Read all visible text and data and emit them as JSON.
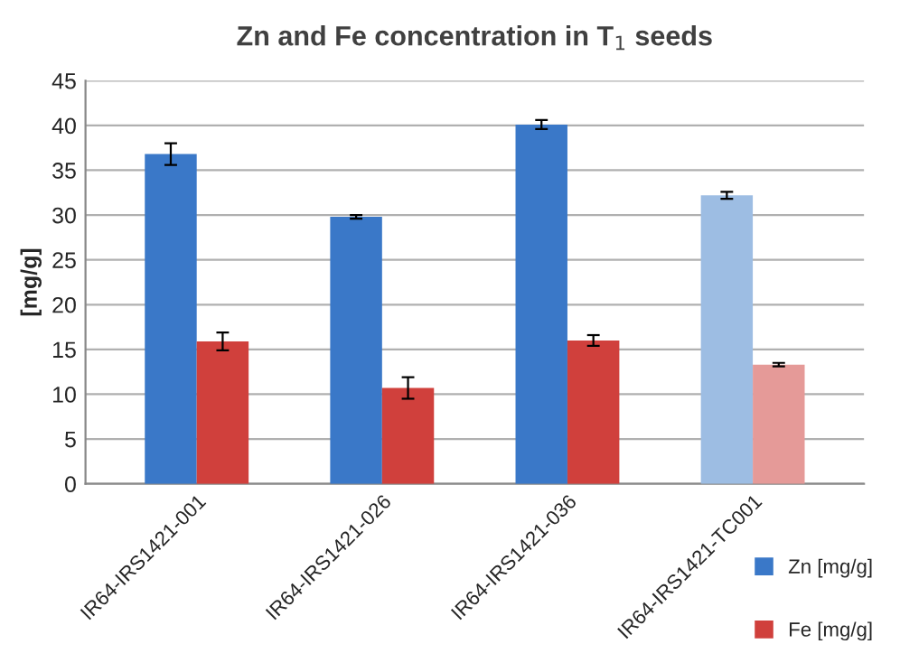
{
  "chart_data": {
    "type": "bar",
    "title": "Zn and Fe concentration in T$_{1}$ seeds",
    "ylabel": "[mg/g]",
    "categories": [
      "IR64-IRS1421-001",
      "IR64-IRS1421-026",
      "IR64-IRS1421-036",
      "IR64-IRS1421-TC001"
    ],
    "series": [
      {
        "name": "Zn [mg/g]",
        "color": "#3a78c8",
        "colors": [
          "#3a78c8",
          "#3a78c8",
          "#3a78c8",
          "#9dbde3"
        ],
        "values": [
          36.8,
          29.8,
          40.1,
          32.2
        ],
        "errors": [
          1.2,
          0.2,
          0.5,
          0.4
        ]
      },
      {
        "name": "Fe [mg/g]",
        "color": "#d0403c",
        "colors": [
          "#d0403c",
          "#d0403c",
          "#d0403c",
          "#e59a98"
        ],
        "values": [
          15.9,
          10.7,
          16.0,
          13.3
        ],
        "errors": [
          1.0,
          1.2,
          0.6,
          0.2
        ]
      }
    ],
    "ylim": [
      0,
      45
    ],
    "yticks": [
      0,
      5,
      10,
      15,
      20,
      25,
      30,
      35,
      40,
      45
    ],
    "grid": "y",
    "legend": "bottom right"
  }
}
